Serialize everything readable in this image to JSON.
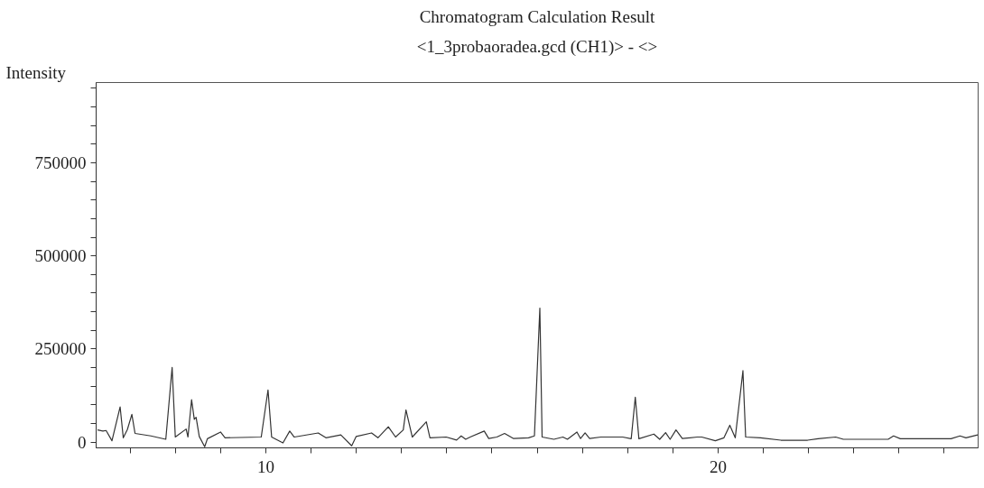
{
  "chart_data": {
    "type": "line",
    "title": "Chromatogram Calculation Result",
    "subtitle": "<1_3probaoradea.gcd (CH1)> - <>",
    "ylabel": "Intensity",
    "x": [
      6.28,
      6.4,
      6.47,
      6.6,
      6.78,
      6.85,
      6.94,
      7.04,
      7.11,
      7.46,
      7.79,
      7.93,
      8.0,
      8.24,
      8.28,
      8.36,
      8.42,
      8.46,
      8.53,
      8.65,
      8.71,
      9.0,
      9.1,
      9.9,
      10.05,
      10.13,
      10.38,
      10.53,
      10.63,
      11.16,
      11.33,
      11.66,
      11.9,
      12.0,
      12.34,
      12.48,
      12.71,
      12.87,
      13.04,
      13.1,
      13.24,
      13.55,
      13.63,
      13.99,
      14.22,
      14.32,
      14.42,
      14.52,
      14.83,
      14.93,
      15.11,
      15.28,
      15.48,
      15.81,
      15.94,
      16.06,
      16.11,
      16.37,
      16.57,
      16.67,
      16.88,
      16.96,
      17.06,
      17.16,
      17.41,
      17.67,
      17.89,
      18.08,
      18.17,
      18.25,
      18.58,
      18.71,
      18.84,
      18.94,
      19.07,
      19.21,
      19.54,
      19.64,
      19.94,
      20.13,
      20.26,
      20.38,
      20.55,
      20.61,
      20.94,
      21.39,
      21.98,
      22.21,
      22.6,
      22.77,
      23.76,
      23.88,
      24.03,
      25.15,
      25.35,
      25.48,
      25.74
    ],
    "series": [
      {
        "color": "#333333",
        "values": [
          33000,
          30000,
          31500,
          4000,
          95000,
          12000,
          34000,
          75000,
          23700,
          17000,
          8000,
          201000,
          14000,
          35500,
          14000,
          114000,
          61600,
          67000,
          15600,
          -12000,
          9500,
          27500,
          12000,
          14000,
          140500,
          14000,
          -1700,
          30000,
          14000,
          25000,
          12000,
          19700,
          -9500,
          15600,
          25000,
          12000,
          41700,
          14000,
          33000,
          86700,
          14000,
          55000,
          12000,
          14000,
          6000,
          17000,
          8000,
          14000,
          30000,
          10000,
          14000,
          23700,
          10000,
          12000,
          17000,
          360000,
          14000,
          8000,
          14000,
          8000,
          27500,
          10000,
          25000,
          10000,
          14000,
          14000,
          14000,
          9500,
          121000,
          9500,
          22000,
          8000,
          26000,
          8000,
          33000,
          10000,
          14000,
          14000,
          4000,
          12000,
          45700,
          12000,
          192000,
          14000,
          12000,
          5500,
          5500,
          9500,
          14000,
          8000,
          8000,
          17000,
          9500,
          9500,
          17000,
          12000,
          19700
        ]
      }
    ],
    "xlim": [
      6.25,
      25.75
    ],
    "ylim": [
      -15000,
      965000
    ],
    "xticks": [
      {
        "value": 7,
        "label": null
      },
      {
        "value": 8,
        "label": null
      },
      {
        "value": 9,
        "label": null
      },
      10,
      {
        "value": 11,
        "label": null
      },
      {
        "value": 12,
        "label": null
      },
      {
        "value": 13,
        "label": null
      },
      {
        "value": 14,
        "label": null
      },
      {
        "value": 15,
        "label": null
      },
      {
        "value": 16,
        "label": null
      },
      {
        "value": 17,
        "label": null
      },
      {
        "value": 18,
        "label": null
      },
      {
        "value": 19,
        "label": null
      },
      20,
      {
        "value": 21,
        "label": null
      },
      {
        "value": 22,
        "label": null
      },
      {
        "value": 23,
        "label": null
      },
      {
        "value": 24,
        "label": null
      },
      {
        "value": 25,
        "label": null
      }
    ],
    "yticks": [
      0,
      {
        "value": 50000,
        "label": null
      },
      {
        "value": 100000,
        "label": null
      },
      {
        "value": 150000,
        "label": null
      },
      {
        "value": 200000,
        "label": null
      },
      250000,
      {
        "value": 300000,
        "label": null
      },
      {
        "value": 350000,
        "label": null
      },
      {
        "value": 400000,
        "label": null
      },
      {
        "value": 450000,
        "label": null
      },
      500000,
      {
        "value": 550000,
        "label": null
      },
      {
        "value": 600000,
        "label": null
      },
      {
        "value": 650000,
        "label": null
      },
      {
        "value": 700000,
        "label": null
      },
      750000,
      {
        "value": 800000,
        "label": null
      },
      {
        "value": 850000,
        "label": null
      },
      {
        "value": 900000,
        "label": null
      },
      {
        "value": 950000,
        "label": null
      }
    ],
    "grid": false,
    "line_style": "solid"
  }
}
